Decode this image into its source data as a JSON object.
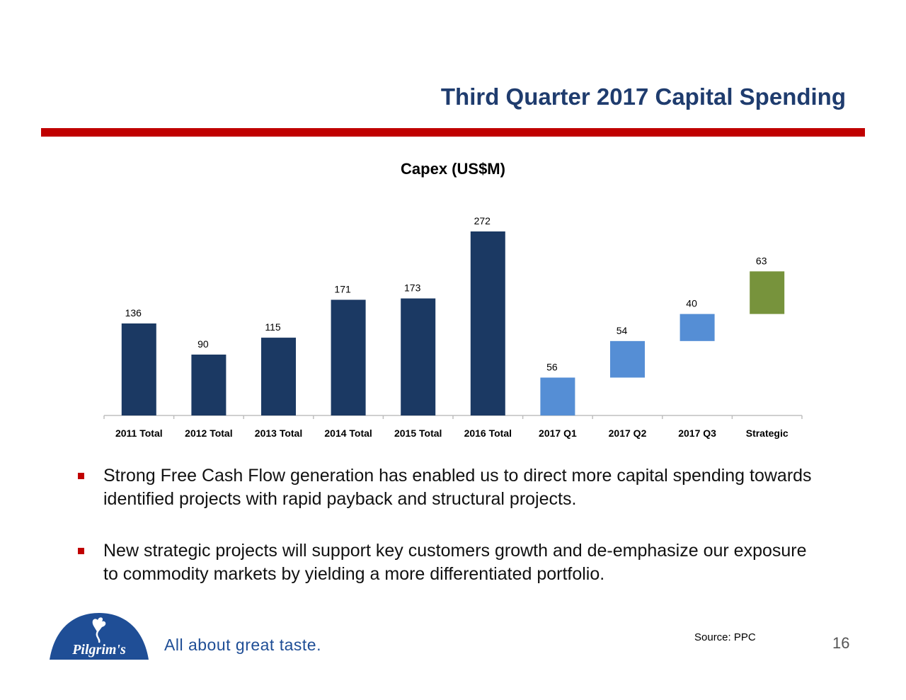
{
  "slide": {
    "title": "Third Quarter 2017 Capital Spending",
    "accent_color": "#c00000",
    "title_color": "#1f3c6e"
  },
  "chart_data": {
    "type": "bar",
    "subtype": "waterfall",
    "title": "Capex (US$M)",
    "categories": [
      "2011 Total",
      "2012 Total",
      "2013 Total",
      "2014 Total",
      "2015 Total",
      "2016 Total",
      "2017 Q1",
      "2017 Q2",
      "2017 Q3",
      "Strategic"
    ],
    "values": [
      136,
      90,
      115,
      171,
      173,
      272,
      56,
      54,
      40,
      63
    ],
    "labels": [
      "136",
      "90",
      "115",
      "171",
      "173",
      "272",
      "56",
      "54",
      "40",
      "63"
    ],
    "bar_kinds": [
      "total",
      "total",
      "total",
      "total",
      "total",
      "total",
      "increment",
      "increment",
      "increment",
      "strategic"
    ],
    "colors": {
      "total": "#1b3963",
      "increment": "#558ed5",
      "strategic": "#77933c"
    },
    "ylim": [
      0,
      272
    ],
    "grid": false,
    "legend": "none"
  },
  "bullets": [
    "Strong Free Cash Flow generation has enabled us to direct more capital spending towards identified projects with rapid payback and structural projects.",
    "New strategic projects will support key customers growth and de-emphasize our exposure to commodity markets by yielding a more differentiated portfolio."
  ],
  "footer": {
    "logo_text": "Pilgrim's",
    "tagline": "All about great taste.",
    "source": "Source: PPC",
    "page_number": "16"
  }
}
